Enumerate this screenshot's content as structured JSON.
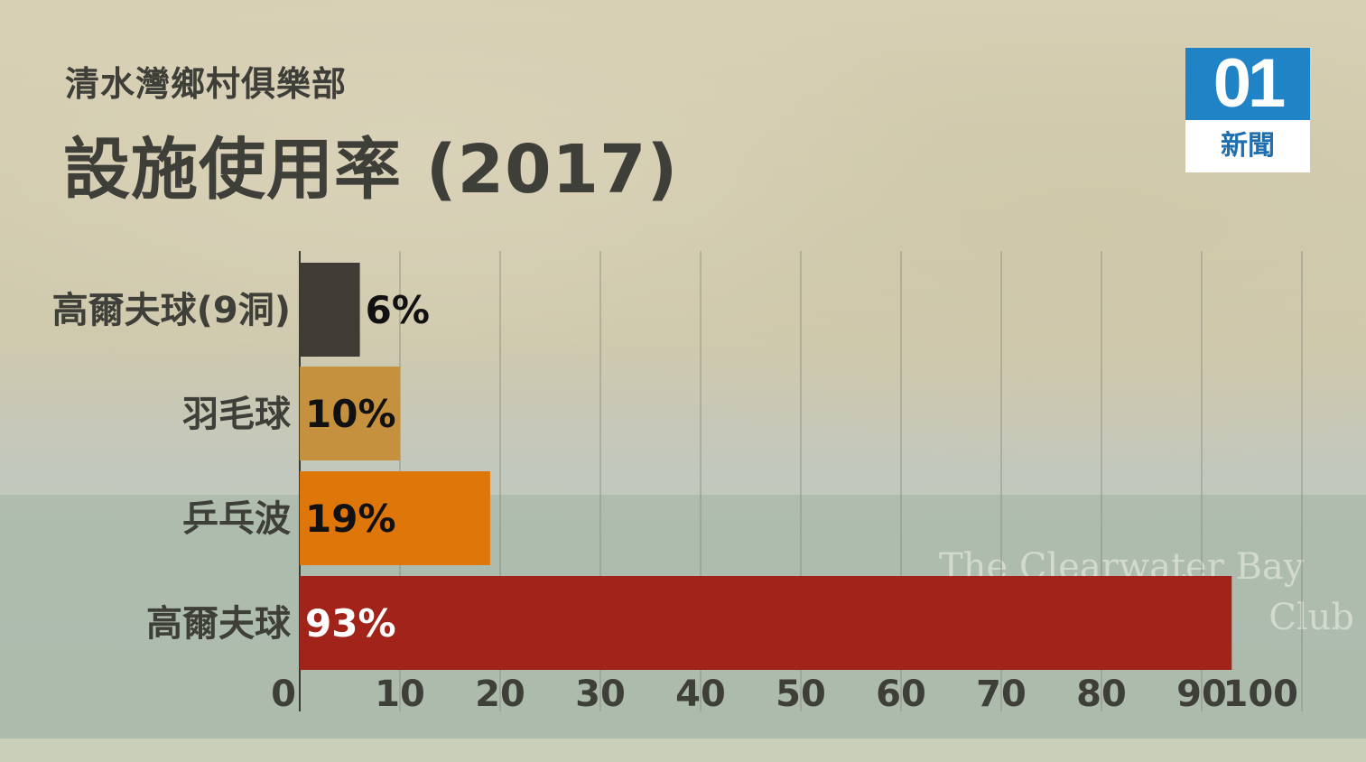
{
  "header": {
    "subtitle": "清水灣鄉村俱樂部",
    "title": "設施使用率 (2017)"
  },
  "logo": {
    "mark": "01",
    "name": "新聞",
    "colors": {
      "blue": "#1f83c6",
      "white": "#ffffff"
    }
  },
  "background_text": [
    "The Clearwater Bay",
    "Club"
  ],
  "chart_data": {
    "type": "bar",
    "orientation": "horizontal",
    "categories": [
      "高爾夫球(9洞)",
      "羽毛球",
      "乒乓波",
      "高爾夫球"
    ],
    "values": [
      6,
      10,
      19,
      93
    ],
    "value_labels": [
      "6%",
      "10%",
      "19%",
      "93%"
    ],
    "bar_colors": [
      "#3e3c35",
      "#c6913f",
      "#de7609",
      "#a2231a"
    ],
    "value_label_colors": [
      "#111111",
      "#111111",
      "#111111",
      "#ffffff"
    ],
    "xlim": [
      0,
      100
    ],
    "xticks": [
      "0",
      "10",
      "20",
      "30",
      "40",
      "50",
      "60",
      "70",
      "80",
      "90",
      "100"
    ],
    "grid": true,
    "title": "設施使用率 (2017)",
    "xlabel": "",
    "ylabel": ""
  }
}
